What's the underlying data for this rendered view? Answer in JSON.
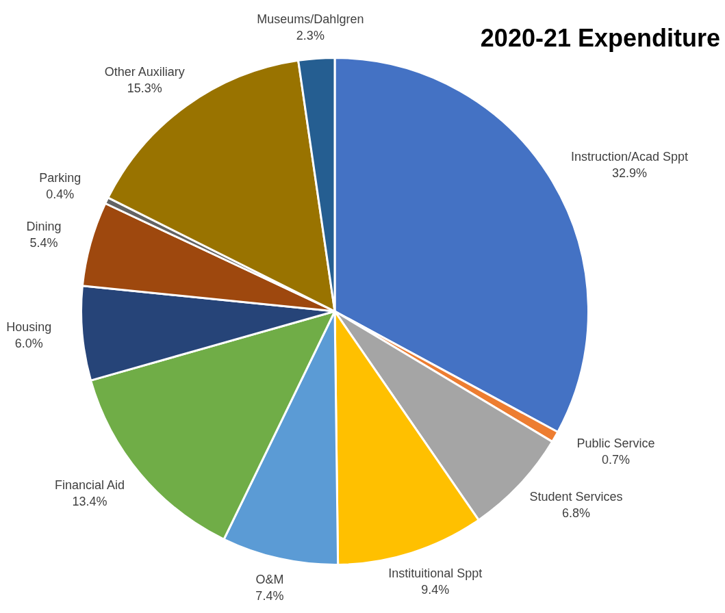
{
  "chart_data": {
    "type": "pie",
    "title": "2020-21 Expenditure",
    "categories": [
      "Instruction/Acad Sppt",
      "Public Service",
      "Student Services",
      "Instituitional Sppt",
      "O&M",
      "Financial Aid",
      "Housing",
      "Dining",
      "Parking",
      "Other Auxiliary",
      "Museums/Dahlgren"
    ],
    "values": [
      32.9,
      0.7,
      6.8,
      9.4,
      7.4,
      13.4,
      6.0,
      5.4,
      0.4,
      15.3,
      2.3
    ],
    "value_labels": [
      "32.9%",
      "0.7%",
      "6.8%",
      "9.4%",
      "7.4%",
      "13.4%",
      "6.0%",
      "5.4%",
      "0.4%",
      "15.3%",
      "2.3%"
    ],
    "colors": [
      "#4472c4",
      "#ed7d31",
      "#a5a5a5",
      "#ffc000",
      "#5b9bd5",
      "#70ad47",
      "#264478",
      "#9e480e",
      "#636363",
      "#997300",
      "#255e91"
    ],
    "legend": false
  }
}
